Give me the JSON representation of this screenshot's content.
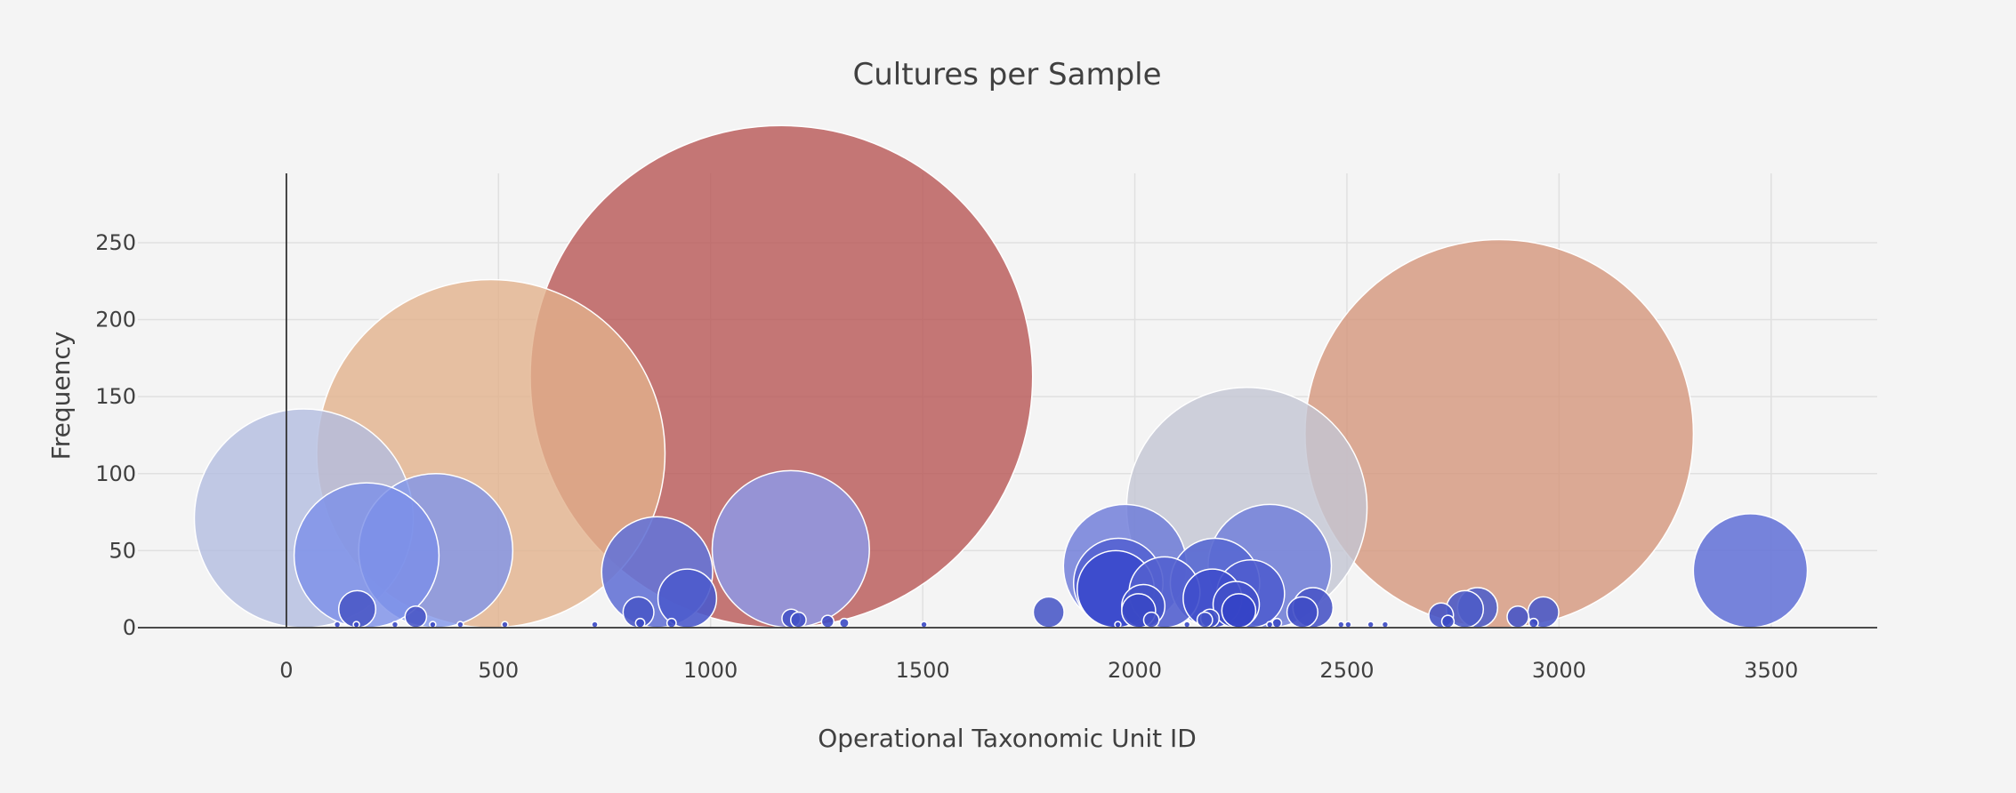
{
  "chart_data": {
    "type": "scatter",
    "title": "Cultures per Sample",
    "xlabel": "Operational Taxonomic Unit ID",
    "ylabel": "Frequency",
    "xlim": [
      -350,
      3750
    ],
    "ylim": [
      0,
      295
    ],
    "xticks": [
      0,
      500,
      1000,
      1500,
      2000,
      2500,
      3000,
      3500
    ],
    "yticks": [
      0,
      50,
      100,
      150,
      200,
      250
    ],
    "grid": true,
    "legend": "none",
    "points": [
      {
        "x": 41,
        "y": 71,
        "size": 71,
        "color": "#b3bde0"
      },
      {
        "x": 482,
        "y": 113,
        "size": 113,
        "color": "#e2b18c"
      },
      {
        "x": 1167,
        "y": 163,
        "size": 163,
        "color": "#b85655"
      },
      {
        "x": 2859,
        "y": 126,
        "size": 126,
        "color": "#d4967c"
      },
      {
        "x": 2264,
        "y": 78,
        "size": 78,
        "color": "#c3c6d3"
      },
      {
        "x": 189,
        "y": 47,
        "size": 47,
        "color": "#7b8fe8"
      },
      {
        "x": 352,
        "y": 50,
        "size": 50,
        "color": "#8095ea"
      },
      {
        "x": 1189,
        "y": 51,
        "size": 51,
        "color": "#8b9bee"
      },
      {
        "x": 874,
        "y": 36,
        "size": 36,
        "color": "#6674d6"
      },
      {
        "x": 3451,
        "y": 37,
        "size": 37,
        "color": "#6877d8"
      },
      {
        "x": 2318,
        "y": 40,
        "size": 40,
        "color": "#6d7bd9"
      },
      {
        "x": 1977,
        "y": 40,
        "size": 40,
        "color": "#6a78d8"
      },
      {
        "x": 1961,
        "y": 29,
        "size": 29,
        "color": "#5563d2"
      },
      {
        "x": 1955,
        "y": 25,
        "size": 25,
        "color": "#3a49cc"
      },
      {
        "x": 2070,
        "y": 23,
        "size": 23,
        "color": "#5361cf"
      },
      {
        "x": 2189,
        "y": 29,
        "size": 29,
        "color": "#5868d1"
      },
      {
        "x": 2273,
        "y": 22,
        "size": 22,
        "color": "#4f5dce"
      },
      {
        "x": 2183,
        "y": 19,
        "size": 19,
        "color": "#3f4ecb"
      },
      {
        "x": 945,
        "y": 19,
        "size": 19,
        "color": "#4d5bcc"
      },
      {
        "x": 2239,
        "y": 15,
        "size": 15,
        "color": "#4250c9"
      },
      {
        "x": 2020,
        "y": 14,
        "size": 14,
        "color": "#4352c8"
      },
      {
        "x": 2245,
        "y": 11,
        "size": 11,
        "color": "#3442c6"
      },
      {
        "x": 2009,
        "y": 11,
        "size": 11,
        "color": "#3a48c5"
      },
      {
        "x": 2420,
        "y": 13,
        "size": 13,
        "color": "#4a57c6"
      },
      {
        "x": 2395,
        "y": 10,
        "size": 10,
        "color": "#3f4cc5"
      },
      {
        "x": 2808,
        "y": 13,
        "size": 13,
        "color": "#5160c9"
      },
      {
        "x": 2778,
        "y": 12,
        "size": 12,
        "color": "#4e5cc8"
      },
      {
        "x": 167,
        "y": 12,
        "size": 12,
        "color": "#4b59c7"
      },
      {
        "x": 1797,
        "y": 10,
        "size": 10,
        "color": "#4d5bc8"
      },
      {
        "x": 2963,
        "y": 10,
        "size": 10,
        "color": "#4d5bc8"
      },
      {
        "x": 830,
        "y": 10,
        "size": 10,
        "color": "#4a58c7"
      },
      {
        "x": 2722,
        "y": 8,
        "size": 8,
        "color": "#4654c6"
      },
      {
        "x": 2903,
        "y": 7,
        "size": 7,
        "color": "#4755c6"
      },
      {
        "x": 305,
        "y": 7,
        "size": 7,
        "color": "#4957c6"
      },
      {
        "x": 2177,
        "y": 6,
        "size": 6,
        "color": "#4452c6"
      },
      {
        "x": 1190,
        "y": 6,
        "size": 6,
        "color": "#4553c6"
      },
      {
        "x": 1207,
        "y": 5,
        "size": 5,
        "color": "#4452c6"
      },
      {
        "x": 2165,
        "y": 5,
        "size": 5,
        "color": "#4351c6"
      },
      {
        "x": 2039,
        "y": 5,
        "size": 5,
        "color": "#4250c6"
      },
      {
        "x": 2738,
        "y": 4,
        "size": 4,
        "color": "#3a48c4"
      },
      {
        "x": 1276,
        "y": 4,
        "size": 4,
        "color": "#3f4dc5"
      },
      {
        "x": 834,
        "y": 3,
        "size": 3,
        "color": "#3c4ac4"
      },
      {
        "x": 908,
        "y": 3,
        "size": 3,
        "color": "#3c4ac4"
      },
      {
        "x": 1315,
        "y": 3,
        "size": 3,
        "color": "#3c4ac4"
      },
      {
        "x": 2335,
        "y": 3,
        "size": 3,
        "color": "#3c4ac4"
      },
      {
        "x": 2940,
        "y": 3,
        "size": 3,
        "color": "#3c4ac4"
      },
      {
        "x": 120,
        "y": 2,
        "size": 2,
        "color": "#3a48c4"
      },
      {
        "x": 165,
        "y": 2,
        "size": 2,
        "color": "#3a48c4"
      },
      {
        "x": 256,
        "y": 2,
        "size": 2,
        "color": "#3a48c4"
      },
      {
        "x": 345,
        "y": 2,
        "size": 2,
        "color": "#3a48c4"
      },
      {
        "x": 410,
        "y": 2,
        "size": 2,
        "color": "#3a48c4"
      },
      {
        "x": 515,
        "y": 2,
        "size": 2,
        "color": "#3a48c4"
      },
      {
        "x": 727,
        "y": 2,
        "size": 2,
        "color": "#3a48c4"
      },
      {
        "x": 1503,
        "y": 2,
        "size": 2,
        "color": "#3a48c4"
      },
      {
        "x": 1960,
        "y": 2,
        "size": 2,
        "color": "#3a48c4"
      },
      {
        "x": 2123,
        "y": 2,
        "size": 2,
        "color": "#3a48c4"
      },
      {
        "x": 2318,
        "y": 2,
        "size": 2,
        "color": "#3a48c4"
      },
      {
        "x": 2486,
        "y": 2,
        "size": 2,
        "color": "#3a48c4"
      },
      {
        "x": 2503,
        "y": 2,
        "size": 2,
        "color": "#3a48c4"
      },
      {
        "x": 2556,
        "y": 2,
        "size": 2,
        "color": "#3a48c4"
      },
      {
        "x": 2590,
        "y": 2,
        "size": 2,
        "color": "#3a48c4"
      }
    ]
  }
}
